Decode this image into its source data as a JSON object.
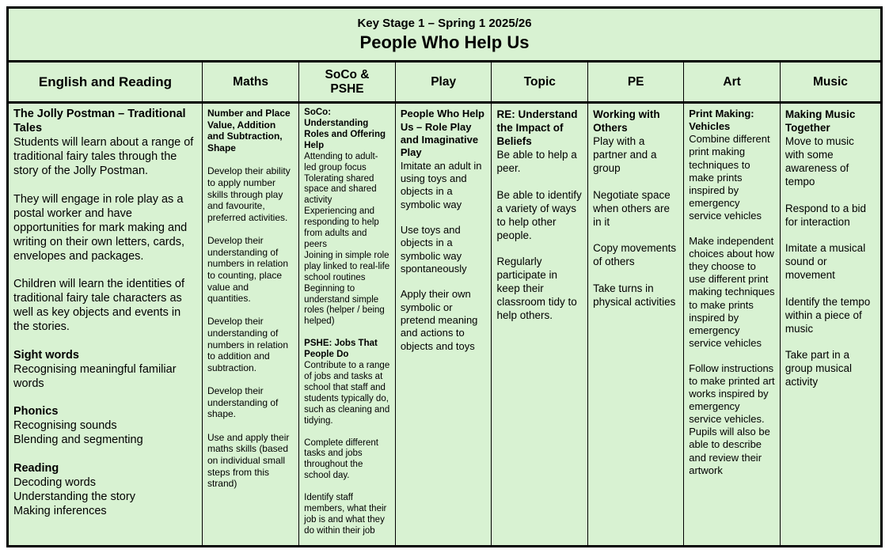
{
  "colors": {
    "cell_background": "#d8f2d2",
    "border": "#000000",
    "text": "#000000"
  },
  "title": {
    "line1": "Key Stage 1 – Spring 1 2025/26",
    "line2": "People Who Help Us"
  },
  "columns": [
    {
      "id": "english-and-reading",
      "header": "English and Reading",
      "blocks": [
        {
          "bold": true,
          "text": "The Jolly Postman – Traditional Tales"
        },
        {
          "bold": false,
          "text": "Students will learn about a range of traditional fairy tales through the story of the Jolly Postman."
        },
        {
          "bold": false,
          "text": ""
        },
        {
          "bold": false,
          "text": "They will engage in role play as a postal worker and have opportunities for mark making and writing on their own letters, cards, envelopes and packages."
        },
        {
          "bold": false,
          "text": ""
        },
        {
          "bold": false,
          "text": "Children will learn the identities of traditional fairy tale characters as well as key objects and events in the stories."
        },
        {
          "bold": false,
          "text": ""
        },
        {
          "bold": true,
          "text": "Sight words"
        },
        {
          "bold": false,
          "text": "Recognising meaningful familiar words"
        },
        {
          "bold": false,
          "text": ""
        },
        {
          "bold": true,
          "text": "Phonics"
        },
        {
          "bold": false,
          "text": "Recognising sounds"
        },
        {
          "bold": false,
          "text": "Blending and segmenting"
        },
        {
          "bold": false,
          "text": ""
        },
        {
          "bold": true,
          "text": "Reading"
        },
        {
          "bold": false,
          "text": "Decoding words"
        },
        {
          "bold": false,
          "text": "Understanding the story"
        },
        {
          "bold": false,
          "text": "Making inferences"
        }
      ]
    },
    {
      "id": "maths",
      "header": "Maths",
      "blocks": [
        {
          "bold": true,
          "text": "Number and Place Value, Addition and Subtraction, Shape"
        },
        {
          "bold": false,
          "text": ""
        },
        {
          "bold": false,
          "text": "Develop their ability to apply number skills through play and favourite, preferred activities."
        },
        {
          "bold": false,
          "text": ""
        },
        {
          "bold": false,
          "text": "Develop their understanding of numbers in relation to counting, place value and quantities."
        },
        {
          "bold": false,
          "text": ""
        },
        {
          "bold": false,
          "text": "Develop their understanding of numbers in relation to addition and subtraction."
        },
        {
          "bold": false,
          "text": ""
        },
        {
          "bold": false,
          "text": "Develop their understanding of shape."
        },
        {
          "bold": false,
          "text": ""
        },
        {
          "bold": false,
          "text": "Use and apply their maths skills (based on individual small steps from this strand)"
        }
      ]
    },
    {
      "id": "soco-pshe",
      "header": "SoCo &\nPSHE",
      "blocks": [
        {
          "bold": true,
          "text": "SoCo: Understanding Roles and Offering Help"
        },
        {
          "bold": false,
          "text": "Attending to adult-led group focus"
        },
        {
          "bold": false,
          "text": "Tolerating shared space and shared activity"
        },
        {
          "bold": false,
          "text": "Experiencing and responding to help from adults and peers"
        },
        {
          "bold": false,
          "text": "Joining in simple role play linked to real-life school routines"
        },
        {
          "bold": false,
          "text": "Beginning to understand simple roles (helper / being helped)"
        },
        {
          "bold": false,
          "text": ""
        },
        {
          "bold": true,
          "text": "PSHE: Jobs That People Do"
        },
        {
          "bold": false,
          "text": "Contribute to a range of jobs and tasks at school that staff and students typically do, such as cleaning and tidying."
        },
        {
          "bold": false,
          "text": ""
        },
        {
          "bold": false,
          "text": "Complete different tasks and jobs throughout the school day."
        },
        {
          "bold": false,
          "text": ""
        },
        {
          "bold": false,
          "text": "Identify staff members, what their job is and what they do within their job"
        }
      ]
    },
    {
      "id": "play",
      "header": "Play",
      "blocks": [
        {
          "bold": true,
          "text": "People Who Help Us – Role Play and Imaginative Play"
        },
        {
          "bold": false,
          "text": "Imitate an adult in using toys and objects in a symbolic way"
        },
        {
          "bold": false,
          "text": ""
        },
        {
          "bold": false,
          "text": "Use toys and objects in a symbolic way spontaneously"
        },
        {
          "bold": false,
          "text": ""
        },
        {
          "bold": false,
          "text": "Apply their own symbolic or pretend meaning and actions to objects and toys"
        }
      ]
    },
    {
      "id": "topic",
      "header": "Topic",
      "blocks": [
        {
          "bold": true,
          "text": "RE: Understand the Impact of Beliefs"
        },
        {
          "bold": false,
          "text": "Be able to help a peer."
        },
        {
          "bold": false,
          "text": ""
        },
        {
          "bold": false,
          "text": "Be able to identify a variety of ways to help other people."
        },
        {
          "bold": false,
          "text": ""
        },
        {
          "bold": false,
          "text": "Regularly participate in keep their classroom tidy to help others."
        }
      ]
    },
    {
      "id": "pe",
      "header": "PE",
      "blocks": [
        {
          "bold": true,
          "text": "Working with Others"
        },
        {
          "bold": false,
          "text": "Play with a partner and a group"
        },
        {
          "bold": false,
          "text": ""
        },
        {
          "bold": false,
          "text": "Negotiate space when others are in it"
        },
        {
          "bold": false,
          "text": ""
        },
        {
          "bold": false,
          "text": "Copy movements of others"
        },
        {
          "bold": false,
          "text": ""
        },
        {
          "bold": false,
          "text": "Take turns in physical activities"
        }
      ]
    },
    {
      "id": "art",
      "header": "Art",
      "blocks": [
        {
          "bold": true,
          "text": "Print Making: Vehicles"
        },
        {
          "bold": false,
          "text": "Combine different print making techniques to make prints inspired by emergency service vehicles"
        },
        {
          "bold": false,
          "text": ""
        },
        {
          "bold": false,
          "text": "Make independent choices about how they choose to use different print making techniques to make prints inspired by emergency service vehicles"
        },
        {
          "bold": false,
          "text": ""
        },
        {
          "bold": false,
          "text": "Follow instructions to make printed art works inspired by emergency service vehicles. Pupils will also be able to describe and review their artwork"
        }
      ]
    },
    {
      "id": "music",
      "header": "Music",
      "blocks": [
        {
          "bold": true,
          "text": "Making Music Together"
        },
        {
          "bold": false,
          "text": "Move to music with some awareness of tempo"
        },
        {
          "bold": false,
          "text": ""
        },
        {
          "bold": false,
          "text": "Respond to a bid for interaction"
        },
        {
          "bold": false,
          "text": ""
        },
        {
          "bold": false,
          "text": "Imitate a musical sound or movement"
        },
        {
          "bold": false,
          "text": ""
        },
        {
          "bold": false,
          "text": "Identify the tempo within a piece of music"
        },
        {
          "bold": false,
          "text": ""
        },
        {
          "bold": false,
          "text": "Take part in a group musical activity"
        }
      ]
    }
  ]
}
